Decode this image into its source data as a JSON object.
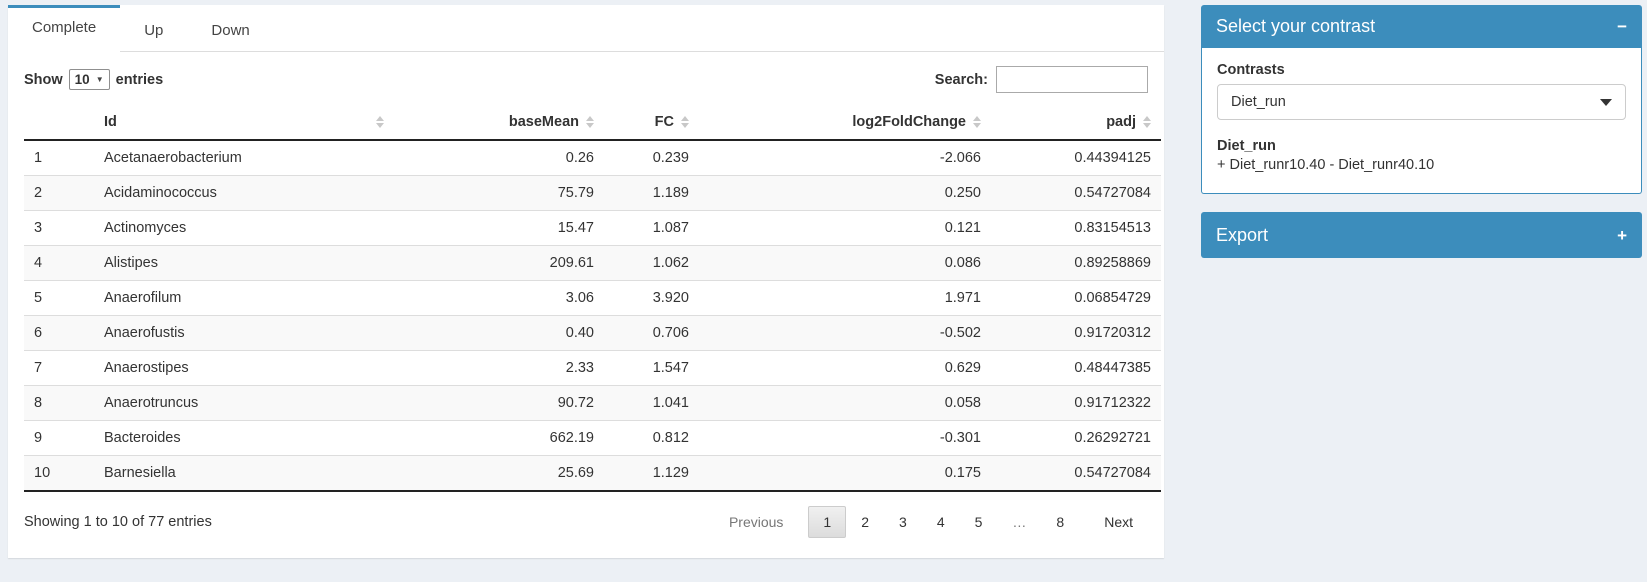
{
  "tabs": [
    {
      "label": "Complete",
      "active": true
    },
    {
      "label": "Up",
      "active": false
    },
    {
      "label": "Down",
      "active": false
    }
  ],
  "length_control": {
    "prefix": "Show",
    "value": "10",
    "suffix": "entries"
  },
  "search": {
    "label": "Search:",
    "value": ""
  },
  "table": {
    "headers": {
      "rownum": "",
      "id": "Id",
      "baseMean": "baseMean",
      "fc": "FC",
      "log2fc": "log2FoldChange",
      "padj": "padj"
    },
    "rows": [
      {
        "n": "1",
        "id": "Acetanaerobacterium",
        "baseMean": "0.26",
        "fc": "0.239",
        "log2fc": "-2.066",
        "padj": "0.44394125"
      },
      {
        "n": "2",
        "id": "Acidaminococcus",
        "baseMean": "75.79",
        "fc": "1.189",
        "log2fc": "0.250",
        "padj": "0.54727084"
      },
      {
        "n": "3",
        "id": "Actinomyces",
        "baseMean": "15.47",
        "fc": "1.087",
        "log2fc": "0.121",
        "padj": "0.83154513"
      },
      {
        "n": "4",
        "id": "Alistipes",
        "baseMean": "209.61",
        "fc": "1.062",
        "log2fc": "0.086",
        "padj": "0.89258869"
      },
      {
        "n": "5",
        "id": "Anaerofilum",
        "baseMean": "3.06",
        "fc": "3.920",
        "log2fc": "1.971",
        "padj": "0.06854729"
      },
      {
        "n": "6",
        "id": "Anaerofustis",
        "baseMean": "0.40",
        "fc": "0.706",
        "log2fc": "-0.502",
        "padj": "0.91720312"
      },
      {
        "n": "7",
        "id": "Anaerostipes",
        "baseMean": "2.33",
        "fc": "1.547",
        "log2fc": "0.629",
        "padj": "0.48447385"
      },
      {
        "n": "8",
        "id": "Anaerotruncus",
        "baseMean": "90.72",
        "fc": "1.041",
        "log2fc": "0.058",
        "padj": "0.91712322"
      },
      {
        "n": "9",
        "id": "Bacteroides",
        "baseMean": "662.19",
        "fc": "0.812",
        "log2fc": "-0.301",
        "padj": "0.26292721"
      },
      {
        "n": "10",
        "id": "Barnesiella",
        "baseMean": "25.69",
        "fc": "1.129",
        "log2fc": "0.175",
        "padj": "0.54727084"
      }
    ]
  },
  "info": "Showing 1 to 10 of 77 entries",
  "pagination": {
    "previous": "Previous",
    "pages": [
      {
        "label": "1",
        "current": true
      },
      {
        "label": "2",
        "current": false
      },
      {
        "label": "3",
        "current": false
      },
      {
        "label": "4",
        "current": false
      },
      {
        "label": "5",
        "current": false
      },
      {
        "label": "…",
        "current": false,
        "ellipsis": true
      },
      {
        "label": "8",
        "current": false
      }
    ],
    "next": "Next"
  },
  "contrast_panel": {
    "title": "Select your contrast",
    "collapse_icon": "−",
    "field_label": "Contrasts",
    "selected_contrast": "Diet_run",
    "detail_title": "Diet_run",
    "detail_formula": "+ Diet_runr10.40 - Diet_runr40.10"
  },
  "export_panel": {
    "title": "Export",
    "expand_icon": "+"
  },
  "colors": {
    "primary": "#3c8dbc",
    "page_background": "#ecf0f5"
  }
}
